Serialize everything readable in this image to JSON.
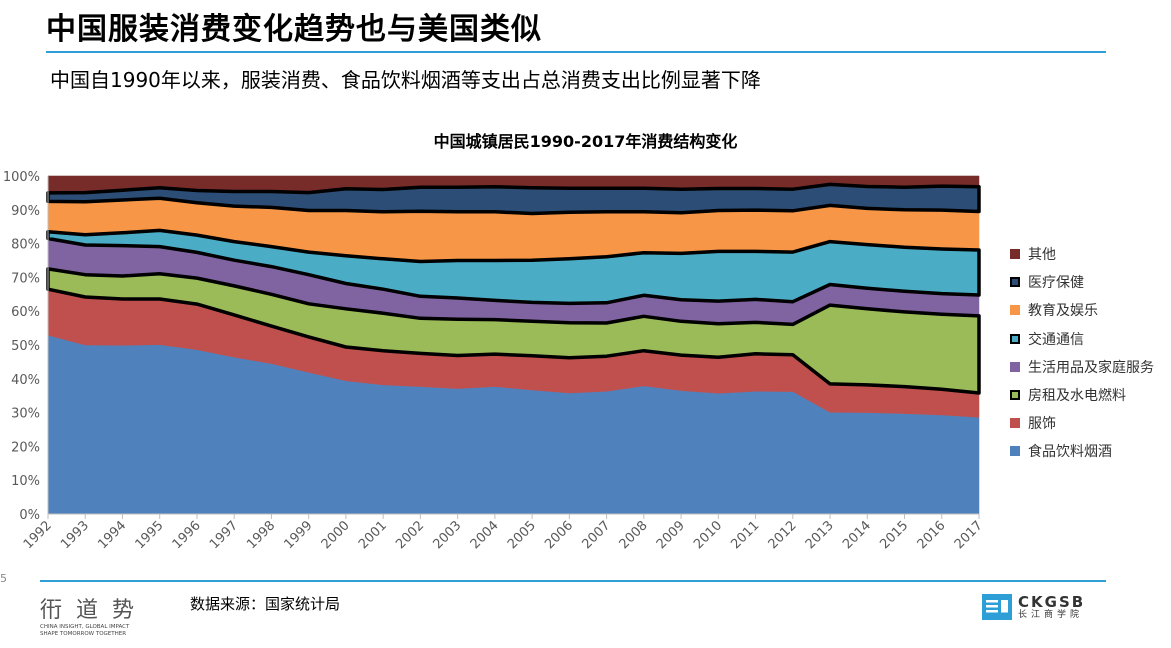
{
  "header": {
    "title": "中国服装消费变化趋势也与美国类似",
    "subtitle": "中国自1990年以来，服装消费、食品饮料烟酒等支出占总消费支出比例显著下降"
  },
  "footer": {
    "source": "数据来源：国家统计局",
    "page_number": "5",
    "logo_left_chars": [
      "衎",
      "道",
      "势"
    ],
    "logo_left_tagline_1": "CHINA INSIGHT, GLOBAL IMPACT",
    "logo_left_tagline_2": "SHAPE TOMORROW TOGETHER",
    "logo_right_en": "CKGSB",
    "logo_right_cn": "长江商学院"
  },
  "colors": {
    "accent_rule": "#2e9fd6",
    "food": "#4f81bd",
    "clothing": "#c0504d",
    "housing": "#9bbb59",
    "household": "#8064a2",
    "transport": "#4bacc6",
    "education": "#f79646",
    "medical": "#2c4d75",
    "other": "#772c2a"
  },
  "chart_data": {
    "type": "area",
    "stacked": "percent",
    "title": "中国城镇居民1990-2017年消费结构变化",
    "xlabel": "",
    "ylabel": "",
    "ylim": [
      0,
      100
    ],
    "y_ticks": [
      "0%",
      "10%",
      "20%",
      "30%",
      "40%",
      "50%",
      "60%",
      "70%",
      "80%",
      "90%",
      "100%"
    ],
    "categories": [
      "1992",
      "1993",
      "1994",
      "1995",
      "1996",
      "1997",
      "1998",
      "1999",
      "2000",
      "2001",
      "2002",
      "2003",
      "2004",
      "2005",
      "2006",
      "2007",
      "2008",
      "2009",
      "2010",
      "2011",
      "2012",
      "2013",
      "2014",
      "2015",
      "2016",
      "2017"
    ],
    "legend_position": "right",
    "series": [
      {
        "name": "食品饮料烟酒",
        "color": "#4f81bd",
        "highlight": false,
        "values": [
          52.9,
          50.0,
          49.9,
          50.1,
          48.6,
          46.4,
          44.5,
          41.9,
          39.4,
          38.2,
          37.7,
          37.1,
          37.7,
          36.7,
          35.8,
          36.3,
          37.9,
          36.5,
          35.7,
          36.3,
          36.2,
          30.1,
          30.0,
          29.7,
          29.3,
          28.6
        ]
      },
      {
        "name": "服饰",
        "color": "#c0504d",
        "highlight": false,
        "values": [
          13.6,
          14.2,
          13.7,
          13.5,
          13.5,
          12.5,
          11.1,
          10.5,
          10.0,
          10.1,
          9.8,
          9.8,
          9.6,
          10.1,
          10.4,
          10.4,
          10.4,
          10.5,
          10.7,
          11.1,
          10.9,
          8.4,
          8.2,
          8.0,
          7.6,
          7.2
        ]
      },
      {
        "name": "房租及水电燃料",
        "color": "#9bbb59",
        "highlight": true,
        "values": [
          6.0,
          6.6,
          6.8,
          7.5,
          7.7,
          8.6,
          9.4,
          9.8,
          11.3,
          11.1,
          10.4,
          10.7,
          10.2,
          10.2,
          10.4,
          9.8,
          10.2,
          10.0,
          9.9,
          9.3,
          9.0,
          23.3,
          22.5,
          22.1,
          22.2,
          22.8
        ]
      },
      {
        "name": "生活用品及家庭服务",
        "color": "#8064a2",
        "highlight": false,
        "values": [
          9.0,
          8.8,
          9.0,
          8.0,
          7.6,
          7.6,
          8.2,
          8.6,
          7.5,
          7.1,
          6.5,
          6.3,
          5.7,
          5.6,
          5.7,
          6.0,
          6.2,
          6.4,
          6.7,
          6.8,
          6.7,
          6.1,
          6.1,
          6.1,
          6.1,
          6.2
        ]
      },
      {
        "name": "交通通信",
        "color": "#4bacc6",
        "highlight": true,
        "values": [
          2.0,
          3.0,
          3.8,
          4.8,
          5.1,
          5.5,
          5.9,
          6.7,
          8.2,
          9.0,
          10.3,
          11.1,
          11.8,
          12.5,
          13.2,
          13.6,
          12.6,
          13.7,
          14.7,
          14.2,
          14.7,
          12.7,
          12.9,
          13.0,
          13.2,
          13.3
        ]
      },
      {
        "name": "教育及娱乐",
        "color": "#f79646",
        "highlight": false,
        "values": [
          9.0,
          9.8,
          9.7,
          9.5,
          9.6,
          10.5,
          11.6,
          12.3,
          13.4,
          13.9,
          14.9,
          14.4,
          14.4,
          13.8,
          13.8,
          13.3,
          12.1,
          12.0,
          12.1,
          12.2,
          12.2,
          10.7,
          10.7,
          11.1,
          11.5,
          11.4
        ]
      },
      {
        "name": "医疗保健",
        "color": "#2c4d75",
        "highlight": true,
        "values": [
          2.5,
          2.7,
          2.9,
          3.1,
          3.6,
          4.3,
          4.7,
          5.3,
          6.4,
          6.6,
          7.1,
          7.3,
          7.4,
          7.6,
          7.1,
          7.0,
          7.0,
          7.0,
          6.5,
          6.4,
          6.4,
          6.2,
          6.5,
          6.7,
          7.1,
          7.3
        ]
      },
      {
        "name": "其他",
        "color": "#772c2a",
        "highlight": false,
        "values": [
          5.0,
          4.9,
          4.2,
          3.5,
          4.3,
          4.6,
          4.6,
          4.9,
          3.8,
          4.0,
          3.3,
          3.3,
          3.2,
          3.5,
          3.6,
          3.6,
          3.6,
          3.9,
          3.7,
          3.7,
          3.9,
          2.5,
          3.1,
          3.3,
          3.0,
          3.2
        ]
      }
    ]
  }
}
